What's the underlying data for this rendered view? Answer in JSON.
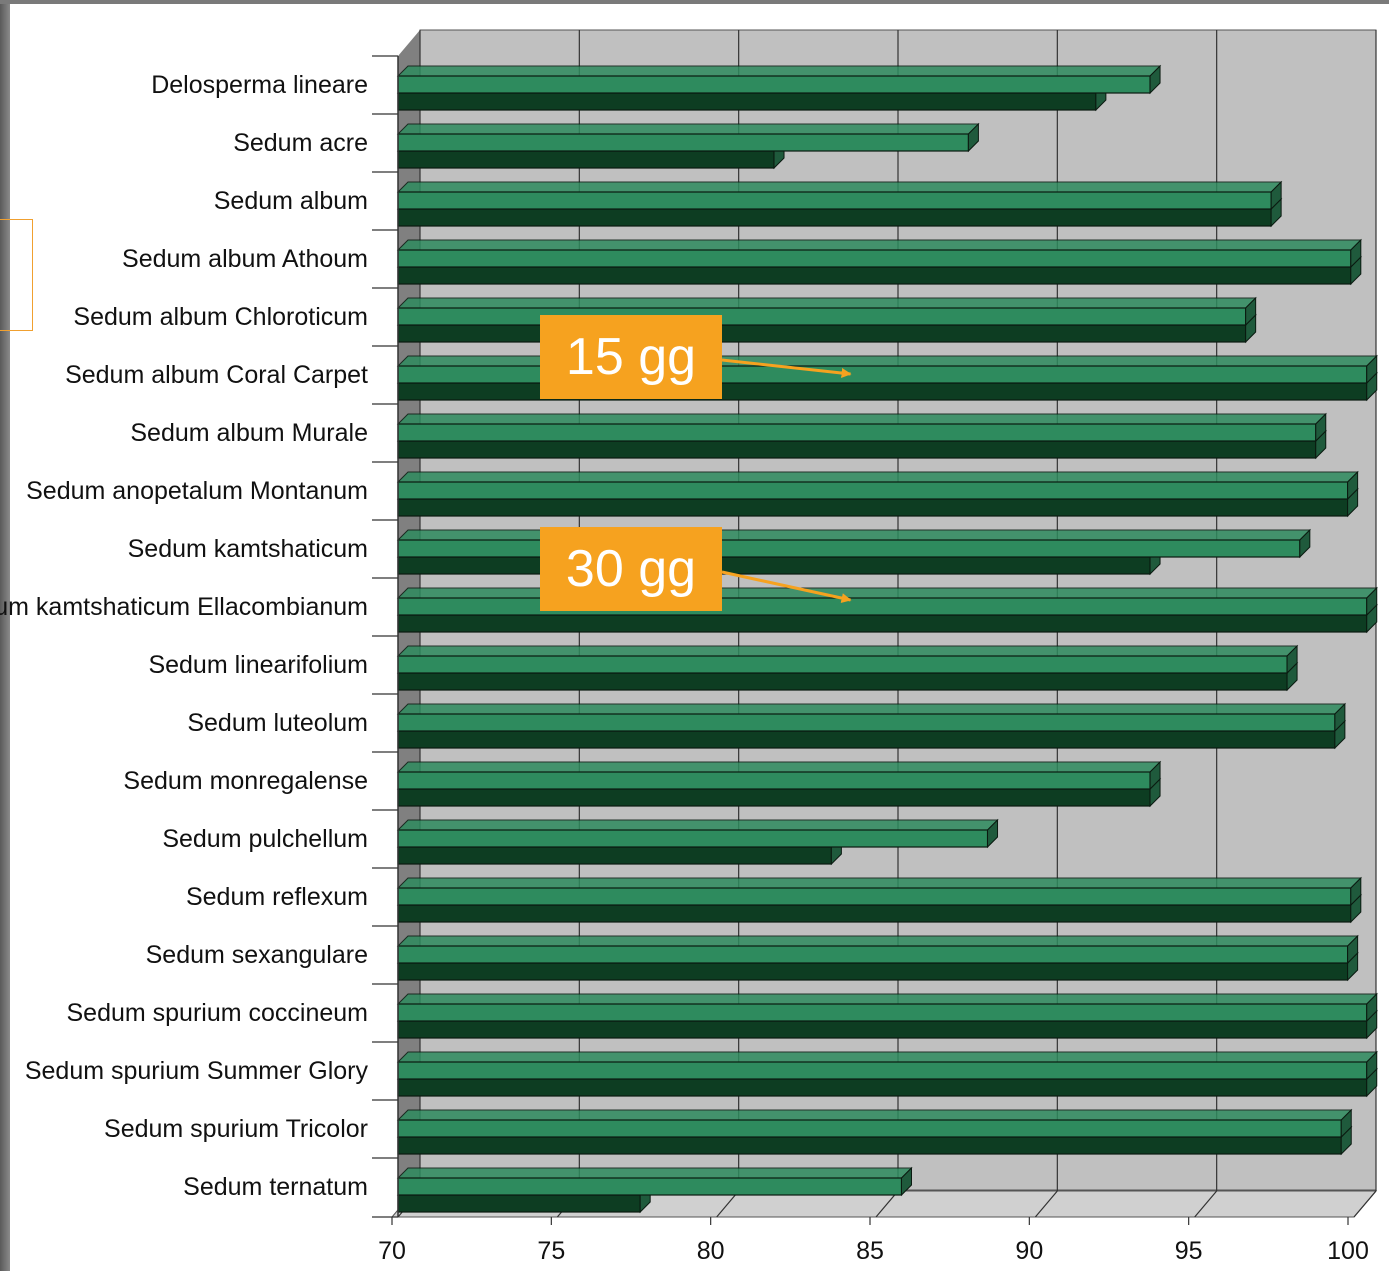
{
  "chart_data": {
    "type": "bar",
    "orientation": "horizontal",
    "categories": [
      "Delosperma lineare",
      "Sedum acre",
      "Sedum album",
      "Sedum album Athoum",
      "Sedum album Chloroticum",
      "Sedum album Coral Carpet",
      "Sedum album Murale",
      "Sedum anopetalum Montanum",
      "Sedum kamtshaticum",
      "Sedum kamtshaticum Ellacombianum",
      "Sedum linearifolium",
      "Sedum luteolum",
      "Sedum monregalense",
      "Sedum pulchellum",
      "Sedum reflexum",
      "Sedum sexangulare",
      "Sedum spurium coccineum",
      "Sedum spurium Summer Glory",
      "Sedum spurium Tricolor",
      "Sedum ternatum"
    ],
    "series": [
      {
        "values": [
          93.6,
          87.9,
          97.4,
          99.9,
          96.6,
          100.4,
          98.8,
          99.8,
          98.3,
          100.4,
          97.9,
          99.4,
          93.6,
          88.5,
          99.9,
          99.8,
          100.4,
          100.4,
          99.6,
          85.8
        ],
        "color": "#2e8b5e"
      },
      {
        "values": [
          91.9,
          81.8,
          97.4,
          99.9,
          96.6,
          100.4,
          98.8,
          99.8,
          93.6,
          100.4,
          97.9,
          99.4,
          93.6,
          83.6,
          99.9,
          99.8,
          100.4,
          100.4,
          99.6,
          77.6
        ],
        "color": "#0d3d22"
      }
    ],
    "xticks": [
      "70",
      "75",
      "80",
      "85",
      "90",
      "95",
      "100"
    ],
    "xlim": [
      70,
      100
    ],
    "grid": true,
    "background_color": "#c0c0c0"
  },
  "annotations": [
    {
      "label": "15 gg",
      "target_category": "Sedum album Coral Carpet"
    },
    {
      "label": "30 gg",
      "target_category": "Sedum kamtshaticum Ellacombianum"
    }
  ],
  "colors": {
    "callout": "#f6a21f",
    "floor": "#808080",
    "grid": "#333333"
  }
}
